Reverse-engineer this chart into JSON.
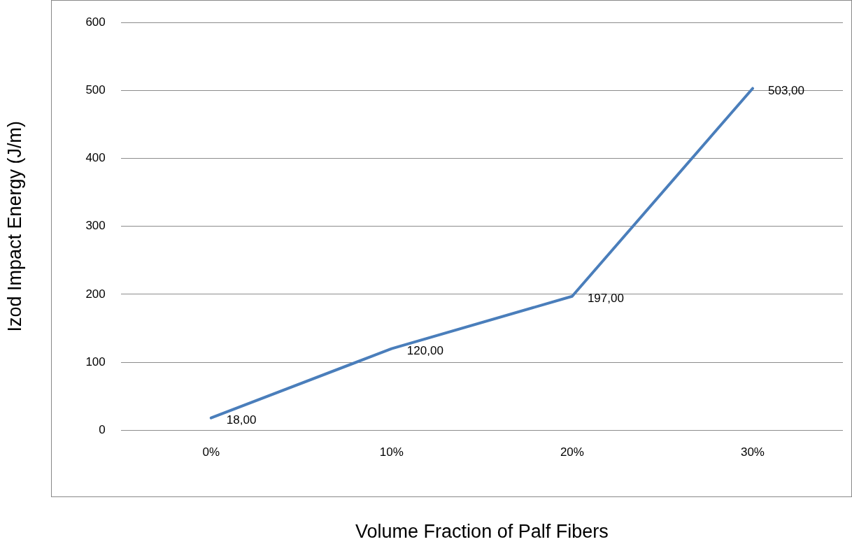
{
  "chart_data": {
    "type": "line",
    "xlabel": "Volume Fraction of Palf Fibers",
    "ylabel": "Izod Impact Energy (J/m)",
    "categories": [
      "0%",
      "10%",
      "20%",
      "30%"
    ],
    "series": [
      {
        "color": "#4a7ebb",
        "values": [
          18,
          120,
          197,
          503
        ],
        "value_labels": [
          "18,00",
          "120,00",
          "197,00",
          "503,00"
        ]
      }
    ],
    "ylim": [
      0,
      600
    ],
    "yticks": [
      0,
      100,
      200,
      300,
      400,
      500,
      600
    ],
    "grid": "y",
    "legend": false,
    "marker": "none",
    "line_style": "solid"
  }
}
